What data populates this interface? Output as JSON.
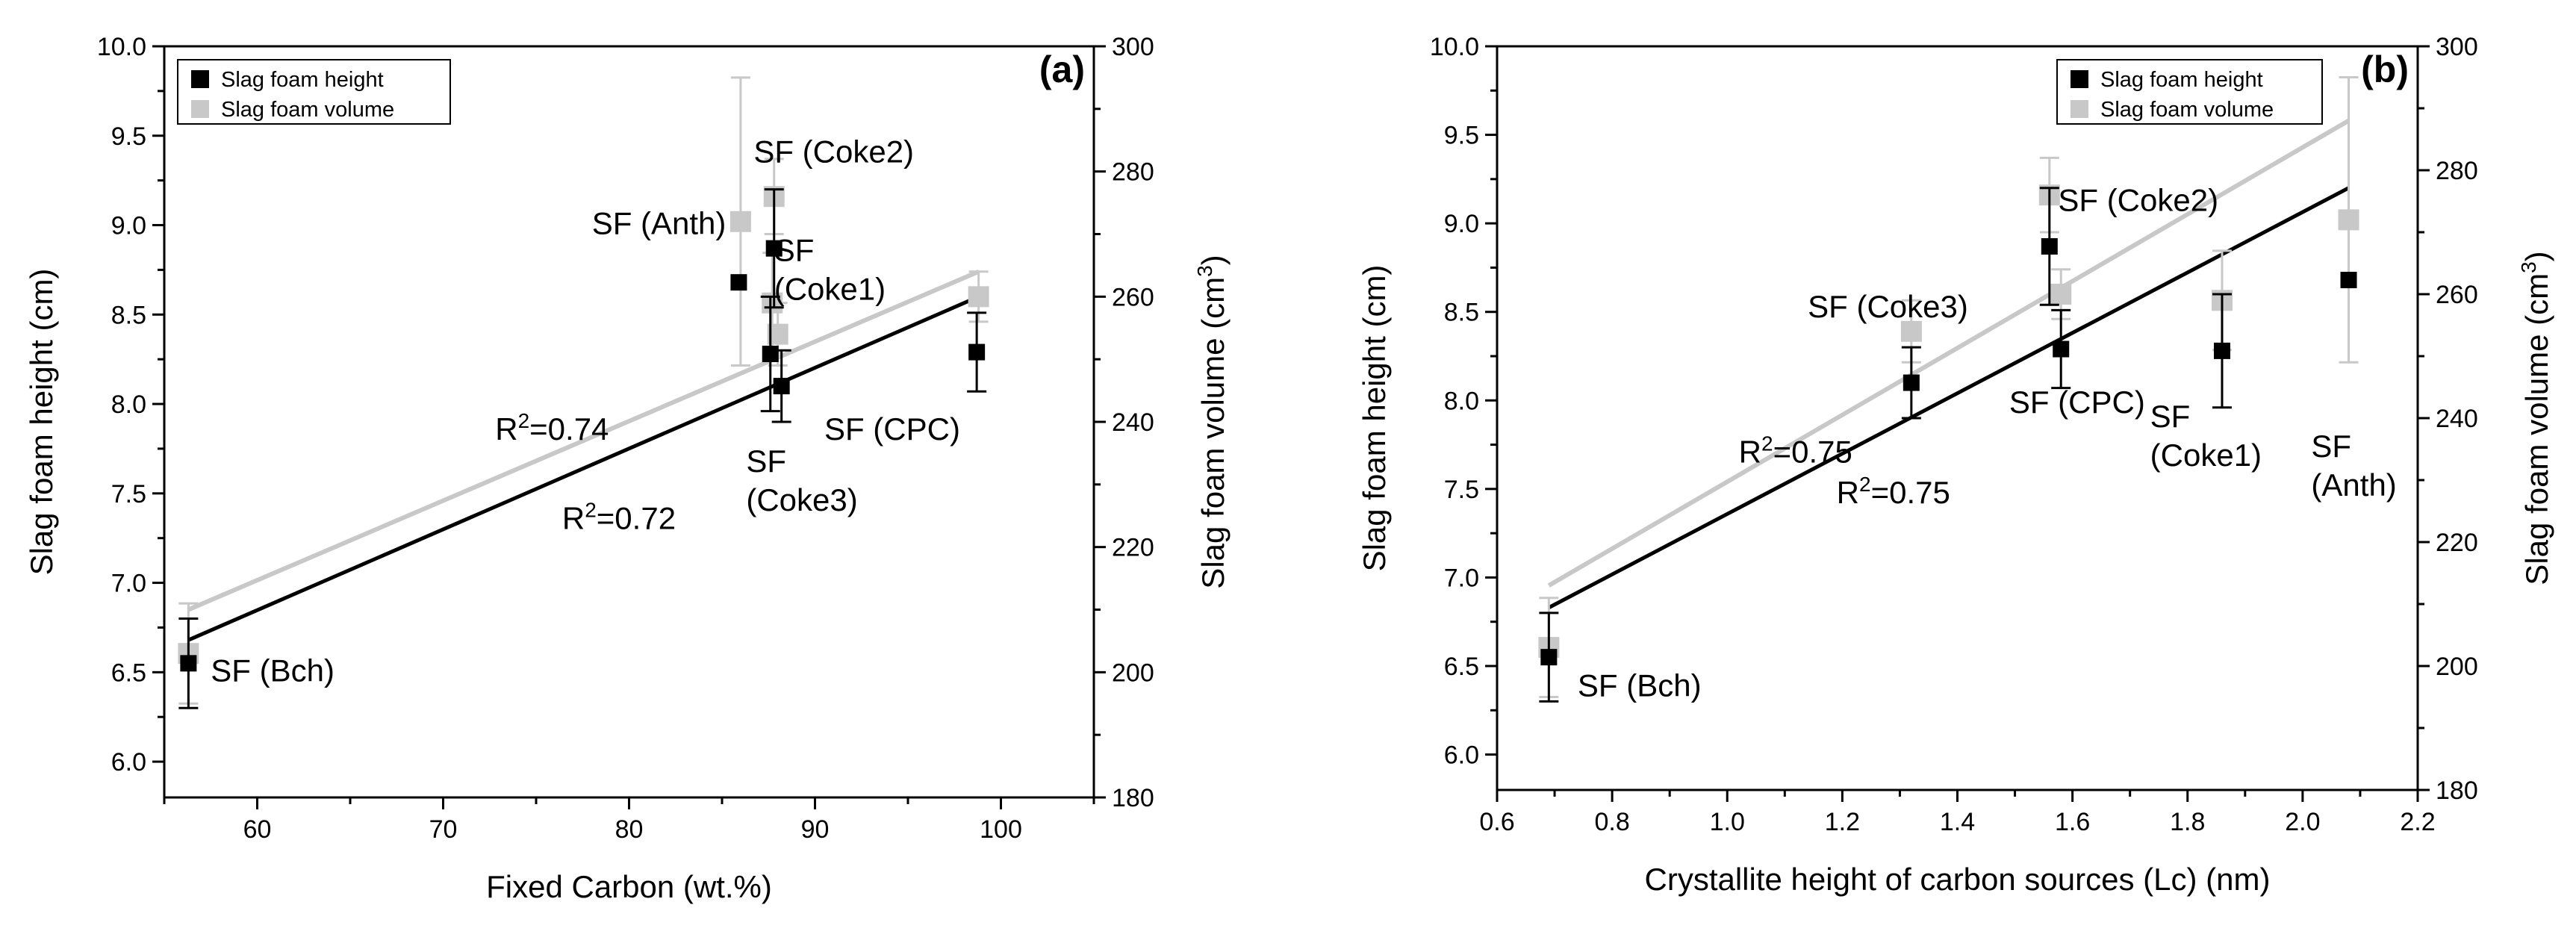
{
  "chart_data": [
    {
      "type": "scatter",
      "panel_label": "(a)",
      "xlabel": "Fixed Carbon (wt.%)",
      "ylabel": "Slag foam height (cm)",
      "y2label": "Slag foam volume (cm",
      "y2label_sup": "3",
      "y2label_end": ")",
      "xlim": [
        55,
        105
      ],
      "ylim": [
        5.8,
        10.0
      ],
      "y2lim": [
        180,
        300
      ],
      "xticks": [
        60,
        70,
        80,
        90,
        100
      ],
      "yticks": [
        6.0,
        6.5,
        7.0,
        7.5,
        8.0,
        8.5,
        9.0,
        9.5,
        10.0
      ],
      "y2ticks": [
        180,
        200,
        220,
        240,
        260,
        280,
        300
      ],
      "legend": [
        "Slag foam height",
        "Slag foam volume"
      ],
      "series": [
        {
          "name": "Slag foam height",
          "axis": "left",
          "color": "#000000",
          "points": [
            {
              "x": 56.3,
              "y": 6.55,
              "err": 0.25
            },
            {
              "x": 85.9,
              "y": 8.68,
              "err": 0.0
            },
            {
              "x": 87.8,
              "y": 8.87,
              "err": 0.33
            },
            {
              "x": 87.6,
              "y": 8.28,
              "err": 0.32
            },
            {
              "x": 88.2,
              "y": 8.1,
              "err": 0.2
            },
            {
              "x": 98.7,
              "y": 8.29,
              "err": 0.22
            }
          ]
        },
        {
          "name": "Slag foam volume",
          "axis": "right",
          "color": "#c8c8c8",
          "points": [
            {
              "x": 56.3,
              "y": 203,
              "err": 8
            },
            {
              "x": 86.0,
              "y": 272,
              "err": 23
            },
            {
              "x": 87.8,
              "y": 276,
              "err": 6
            },
            {
              "x": 87.7,
              "y": 259,
              "err": 8
            },
            {
              "x": 88.0,
              "y": 254,
              "err": 5
            },
            {
              "x": 98.8,
              "y": 260,
              "err": 4
            }
          ]
        }
      ],
      "fits": [
        {
          "axis": "left",
          "color": "#000000",
          "x": [
            56.3,
            98.8
          ],
          "y": [
            6.68,
            8.6
          ]
        },
        {
          "axis": "right",
          "color": "#c8c8c8",
          "x": [
            56.3,
            98.8
          ],
          "y": [
            210,
            264
          ]
        }
      ],
      "r2_labels": [
        {
          "text": "R",
          "sup": "2",
          "value": "=0.74",
          "x": 72.8,
          "y": 7.8
        },
        {
          "text": "R",
          "sup": "2",
          "value": "=0.72",
          "x": 76.4,
          "y": 7.3
        }
      ],
      "annotations": [
        {
          "lines": [
            "SF (Bch)"
          ],
          "x": 57.5,
          "y": 6.45
        },
        {
          "lines": [
            "SF (Anth)"
          ],
          "x": 78.0,
          "y": 8.95
        },
        {
          "lines": [
            "SF (Coke2)"
          ],
          "x": 86.7,
          "y": 9.35
        },
        {
          "lines": [
            "SF",
            "(Coke1)"
          ],
          "x": 87.8,
          "y": 8.8
        },
        {
          "lines": [
            "SF",
            "(Coke3)"
          ],
          "x": 86.3,
          "y": 7.62
        },
        {
          "lines": [
            "SF (CPC)"
          ],
          "x": 90.5,
          "y": 7.8
        }
      ]
    },
    {
      "type": "scatter",
      "panel_label": "(b)",
      "xlabel": "Crystallite height of carbon sources (Lc) (nm)",
      "ylabel": "Slag foam height (cm)",
      "y2label": "Slag foam volume (cm",
      "y2label_sup": "3",
      "y2label_end": ")",
      "xlim": [
        0.6,
        2.2
      ],
      "ylim": [
        5.8,
        10.0
      ],
      "y2lim": [
        180,
        300
      ],
      "xticks": [
        0.6,
        0.8,
        1.0,
        1.2,
        1.4,
        1.6,
        1.8,
        2.0,
        2.2
      ],
      "yticks": [
        6.0,
        6.5,
        7.0,
        7.5,
        8.0,
        8.5,
        9.0,
        9.5,
        10.0
      ],
      "y2ticks": [
        180,
        200,
        220,
        240,
        260,
        280,
        300
      ],
      "legend": [
        "Slag foam height",
        "Slag foam volume"
      ],
      "series": [
        {
          "name": "Slag foam height",
          "axis": "left",
          "color": "#000000",
          "points": [
            {
              "x": 0.69,
              "y": 6.55,
              "err": 0.25
            },
            {
              "x": 1.32,
              "y": 8.1,
              "err": 0.2
            },
            {
              "x": 1.56,
              "y": 8.87,
              "err": 0.33
            },
            {
              "x": 1.58,
              "y": 8.29,
              "err": 0.22
            },
            {
              "x": 1.86,
              "y": 8.28,
              "err": 0.32
            },
            {
              "x": 2.08,
              "y": 8.68,
              "err": 0.0
            }
          ]
        },
        {
          "name": "Slag foam volume",
          "axis": "right",
          "color": "#c8c8c8",
          "points": [
            {
              "x": 0.69,
              "y": 203,
              "err": 8
            },
            {
              "x": 1.32,
              "y": 254,
              "err": 5
            },
            {
              "x": 1.56,
              "y": 276,
              "err": 6
            },
            {
              "x": 1.58,
              "y": 260,
              "err": 4
            },
            {
              "x": 1.86,
              "y": 259,
              "err": 8
            },
            {
              "x": 2.08,
              "y": 272,
              "err": 23
            }
          ]
        }
      ],
      "fits": [
        {
          "axis": "left",
          "color": "#000000",
          "x": [
            0.69,
            2.08
          ],
          "y": [
            6.83,
            9.2
          ]
        },
        {
          "axis": "right",
          "color": "#c8c8c8",
          "x": [
            0.69,
            2.08
          ],
          "y": [
            213,
            288
          ]
        }
      ],
      "r2_labels": [
        {
          "text": "R",
          "sup": "2",
          "value": "=0.75",
          "x": 1.02,
          "y": 7.65
        },
        {
          "text": "R",
          "sup": "2",
          "value": "=0.75",
          "x": 1.19,
          "y": 7.42
        }
      ],
      "annotations": [
        {
          "lines": [
            "SF (Bch)"
          ],
          "x": 0.74,
          "y": 6.33
        },
        {
          "lines": [
            "SF (Coke3)"
          ],
          "x": 1.14,
          "y": 8.47
        },
        {
          "lines": [
            "SF (Coke2)"
          ],
          "x": 1.575,
          "y": 9.07
        },
        {
          "lines": [
            "SF (CPC)"
          ],
          "x": 1.49,
          "y": 7.93
        },
        {
          "lines": [
            "SF",
            "(Coke1)"
          ],
          "x": 1.735,
          "y": 7.85
        },
        {
          "lines": [
            "SF",
            "(Anth)"
          ],
          "x": 2.015,
          "y": 7.68
        }
      ]
    }
  ]
}
